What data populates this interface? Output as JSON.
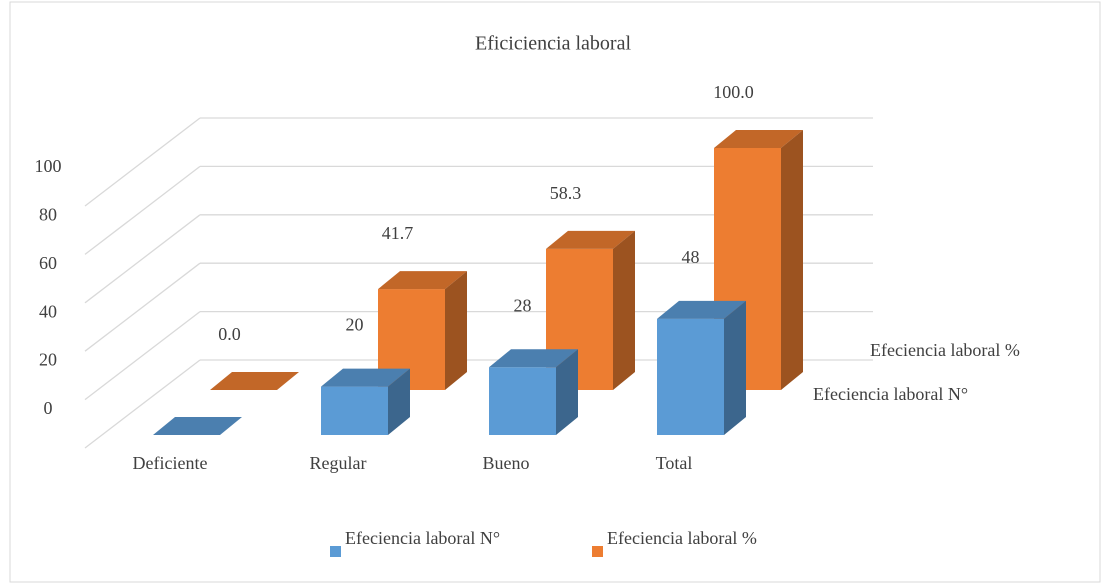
{
  "chart_data": {
    "type": "bar3d",
    "title": "Eficiciencia laboral",
    "categories": [
      "Deficiente",
      "Regular",
      "Bueno",
      "Total"
    ],
    "series": [
      {
        "name": "Efeciencia laboral N°",
        "color": "#5b9bd5",
        "values": [
          0,
          20,
          28,
          48
        ],
        "value_labels": [
          null,
          "20",
          "28",
          "48"
        ]
      },
      {
        "name": "Efeciencia laboral %",
        "color": "#ed7d31",
        "values": [
          0,
          41.7,
          58.3,
          100
        ],
        "value_labels": [
          "0.0",
          "41.7",
          "58.3",
          "100.0"
        ]
      }
    ],
    "ylim": [
      0,
      100
    ],
    "yticks": [
      0,
      20,
      40,
      60,
      80,
      100
    ],
    "grid": true,
    "legend": "bottom"
  }
}
